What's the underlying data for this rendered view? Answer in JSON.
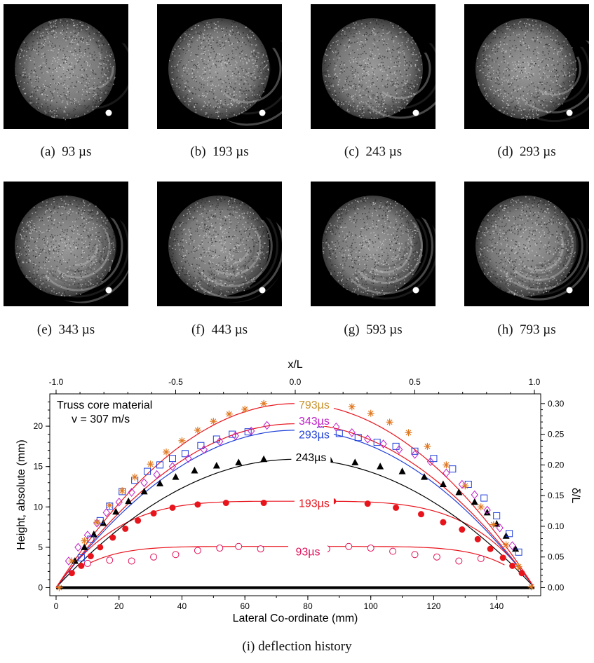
{
  "panels": [
    {
      "label": "(a)",
      "time": "93 µs"
    },
    {
      "label": "(b)",
      "time": "193 µs"
    },
    {
      "label": "(c)",
      "time": "243 µs"
    },
    {
      "label": "(d)",
      "time": "293 µs"
    },
    {
      "label": "(e)",
      "time": "343 µs"
    },
    {
      "label": "(f)",
      "time": "443 µs"
    },
    {
      "label": "(g)",
      "time": "593 µs"
    },
    {
      "label": "(h)",
      "time": "793 µs"
    }
  ],
  "figure_caption": "(i)  deflection history",
  "chart_data": {
    "type": "scatter",
    "annotation": [
      "Truss core material",
      "v = 307 m/s"
    ],
    "xlabel": "Lateral Co-ordinate (mm)",
    "ylabel": "Height, absolute (mm)",
    "x2label": "x/L",
    "y2label": "δ/L",
    "xlim": [
      -2,
      154
    ],
    "ylim": [
      -1,
      24
    ],
    "x_ticks": [
      0,
      20,
      40,
      60,
      80,
      100,
      120,
      140
    ],
    "y_ticks": [
      0,
      5,
      10,
      15,
      20
    ],
    "x2_ticks": [
      "-1.0",
      "-0.5",
      "0.0",
      "0.5",
      "1.0"
    ],
    "y2_ticks": [
      "0.00",
      "0.05",
      "0.10",
      "0.15",
      "0.20",
      "0.25",
      "0.30"
    ],
    "grid": false,
    "series": [
      {
        "name": "93µs",
        "color": "#e0105a",
        "fit_color": "#e8141c",
        "marker": "open-circle",
        "x": [
          10,
          17,
          24,
          31,
          38,
          45,
          52,
          58,
          65,
          86,
          93,
          100,
          107,
          114,
          121,
          128,
          135
        ],
        "y": [
          3.0,
          3.4,
          3.3,
          3.8,
          4.1,
          4.6,
          4.9,
          5.1,
          4.8,
          4.8,
          5.1,
          4.9,
          4.5,
          4.1,
          3.8,
          3.3,
          3.6
        ]
      },
      {
        "name": "193µs",
        "color": "#e8141c",
        "fit_color": "#e8141c",
        "marker": "filled-circle",
        "x": [
          5,
          8,
          11,
          14,
          18,
          22,
          26,
          31,
          37,
          45,
          54,
          66,
          88,
          99,
          108,
          116,
          123,
          129,
          134,
          138,
          142,
          145,
          148
        ],
        "y": [
          1.8,
          2.7,
          3.9,
          5.0,
          6.2,
          7.3,
          8.3,
          9.2,
          9.9,
          10.3,
          10.5,
          10.5,
          10.7,
          10.4,
          9.9,
          9.1,
          8.1,
          7.2,
          6.0,
          4.8,
          3.7,
          2.7,
          1.8
        ]
      },
      {
        "name": "243µs",
        "color": "#000000",
        "fit_color": "#000000",
        "marker": "filled-triangle",
        "x": [
          6,
          9,
          12,
          15,
          19,
          23,
          28,
          33,
          38,
          44,
          51,
          58,
          66,
          87,
          95,
          103,
          110,
          117,
          123,
          128,
          133,
          137,
          140,
          143,
          146
        ],
        "y": [
          3.3,
          5.0,
          6.6,
          8.0,
          9.4,
          10.7,
          11.9,
          12.9,
          13.7,
          14.5,
          15.1,
          15.5,
          15.9,
          15.9,
          15.5,
          15.0,
          14.4,
          13.7,
          12.8,
          11.8,
          10.6,
          9.3,
          7.9,
          6.4,
          4.8
        ]
      },
      {
        "name": "293µs",
        "color": "#2040d8",
        "fit_color": "#2040d8",
        "marker": "open-square",
        "x": [
          8,
          11,
          14,
          17,
          21,
          25,
          29,
          33,
          37,
          41,
          46,
          51,
          56,
          61,
          84,
          90,
          96,
          102,
          108,
          114,
          120,
          126,
          131,
          136,
          140,
          144,
          147
        ],
        "y": [
          3.7,
          6.0,
          8.3,
          10.1,
          11.9,
          13.3,
          14.4,
          15.2,
          16.0,
          16.6,
          17.6,
          18.4,
          19.0,
          19.3,
          19.5,
          19.1,
          18.6,
          18.0,
          17.5,
          16.9,
          16.0,
          14.7,
          12.8,
          11.1,
          8.9,
          6.7,
          4.4
        ]
      },
      {
        "name": "343µs",
        "color": "#c020c8",
        "fit_color": "#e8141c",
        "marker": "open-diamond",
        "x": [
          4,
          7,
          10,
          13,
          16,
          20,
          24,
          28,
          32,
          37,
          42,
          47,
          52,
          57,
          62,
          67,
          84,
          89,
          94,
          99,
          104,
          109,
          114,
          119,
          124,
          129,
          133,
          137,
          141,
          145
        ],
        "y": [
          3.3,
          5.0,
          6.5,
          8.0,
          9.3,
          10.6,
          11.8,
          13.0,
          14.0,
          15.0,
          16.0,
          17.1,
          18.1,
          18.8,
          19.4,
          20.1,
          20.3,
          19.9,
          19.2,
          18.4,
          17.8,
          17.1,
          16.5,
          15.6,
          14.2,
          12.8,
          11.5,
          9.6,
          7.4,
          5.2
        ]
      },
      {
        "name": "793µs",
        "color": "#e07820",
        "fit_color": "#e8141c",
        "marker": "asterisk",
        "x": [
          1,
          5,
          9,
          13,
          17,
          21,
          25,
          30,
          35,
          40,
          45,
          50,
          55,
          60,
          66,
          94,
          100,
          106,
          112,
          118,
          124,
          130,
          135,
          139,
          143,
          147,
          151
        ],
        "y": [
          0.0,
          3.3,
          5.8,
          8.1,
          10.2,
          12.0,
          13.7,
          15.3,
          16.8,
          18.2,
          19.5,
          20.6,
          21.5,
          22.1,
          22.8,
          22.4,
          21.6,
          20.5,
          19.2,
          17.5,
          15.2,
          12.6,
          10.0,
          7.8,
          5.3,
          2.6,
          0.1
        ]
      }
    ],
    "baseline": {
      "y": 0,
      "color": "#000000"
    },
    "curve_labels": [
      {
        "text": "793µs",
        "color": "#c8922a",
        "x": 82,
        "y": 22.7
      },
      {
        "text": "343µs",
        "color": "#c020c8",
        "x": 82,
        "y": 20.7
      },
      {
        "text": "293µs",
        "color": "#2040d8",
        "x": 82,
        "y": 19.0
      },
      {
        "text": "243µs",
        "color": "#000000",
        "x": 81,
        "y": 16.2
      },
      {
        "text": "193µs",
        "color": "#e8141c",
        "x": 82,
        "y": 10.5
      },
      {
        "text": "93µs",
        "color": "#e0105a",
        "x": 80,
        "y": 4.5
      }
    ]
  }
}
